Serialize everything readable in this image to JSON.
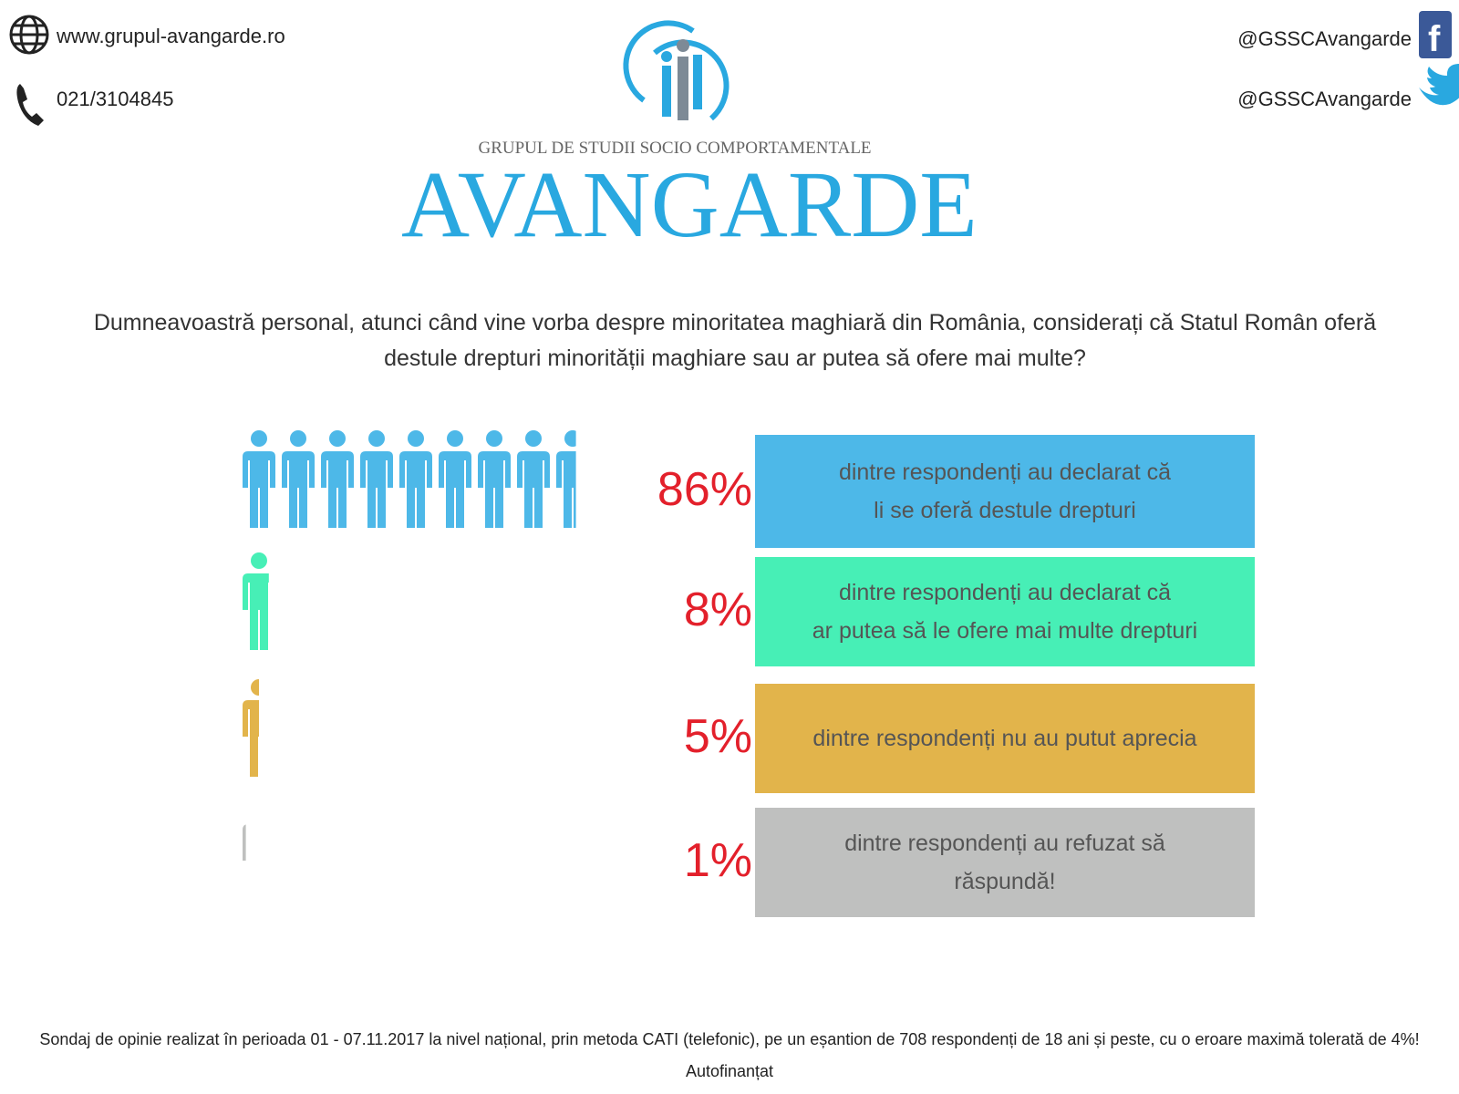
{
  "header": {
    "website": "www.grupul-avangarde.ro",
    "phone": "021/3104845",
    "facebook": "@GSSCAvangarde",
    "twitter": "@GSSCAvangarde",
    "org_subtitle": "GRUPUL DE STUDII SOCIO COMPORTAMENTALE",
    "org_name": "AVANGARDE"
  },
  "chart_data": {
    "type": "pictogram",
    "title": "Dumneavoastră personal, atunci când vine vorba despre minoritatea maghiară din România, considerați că Statul Român oferă destule drepturi minorității maghiare sau ar putea să ofere mai multe?",
    "categories": [
      "dintre respondenți au declarat că\nli se oferă destule drepturi",
      "dintre respondenți au declarat că\nar putea să le ofere mai multe drepturi",
      "dintre respondenți nu au putut aprecia",
      "dintre respondenți au refuzat să\nrăspundă!"
    ],
    "values": [
      86,
      8,
      5,
      1
    ],
    "value_labels": [
      "86%",
      "8%",
      "5%",
      "1%"
    ],
    "colors": [
      "#4db8e8",
      "#47efb6",
      "#e2b44b",
      "#bfc0bf"
    ],
    "ylim": [
      0,
      100
    ]
  },
  "footer": {
    "note": "Sondaj de opinie realizat în perioada 01 - 07.11.2017 la nivel național, prin metoda CATI (telefonic), pe un eșantion de 708 respondenți de 18 ani și peste, cu o eroare maximă tolerată de 4%!",
    "funding": "Autofinanțat"
  }
}
